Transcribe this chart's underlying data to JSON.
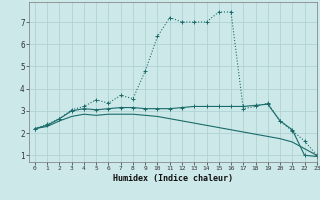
{
  "bg_color": "#cde8e8",
  "grid_color": "#aacfcf",
  "line_color": "#1a6b6b",
  "xlabel": "Humidex (Indice chaleur)",
  "xlim": [
    -0.5,
    23
  ],
  "ylim": [
    0.7,
    7.9
  ],
  "xticks": [
    0,
    1,
    2,
    3,
    4,
    5,
    6,
    7,
    8,
    9,
    10,
    11,
    12,
    13,
    14,
    15,
    16,
    17,
    18,
    19,
    20,
    21,
    22,
    23
  ],
  "yticks": [
    1,
    2,
    3,
    4,
    5,
    6,
    7
  ],
  "line1_x": [
    0,
    1,
    2,
    3,
    4,
    5,
    6,
    7,
    8,
    9,
    10,
    11,
    12,
    13,
    14,
    15,
    16,
    17,
    18,
    19,
    20,
    21,
    22,
    23
  ],
  "line1_y": [
    2.2,
    2.4,
    2.65,
    3.05,
    3.2,
    3.5,
    3.35,
    3.7,
    3.55,
    4.8,
    6.35,
    7.2,
    7.0,
    7.0,
    7.0,
    7.45,
    7.45,
    3.1,
    3.2,
    3.35,
    2.55,
    2.1,
    1.65,
    1.0
  ],
  "line2_x": [
    0,
    1,
    2,
    3,
    4,
    5,
    6,
    7,
    8,
    9,
    10,
    11,
    12,
    13,
    14,
    15,
    16,
    17,
    18,
    19,
    20,
    21,
    22,
    23
  ],
  "line2_y": [
    2.2,
    2.35,
    2.65,
    3.0,
    3.1,
    3.05,
    3.1,
    3.15,
    3.15,
    3.1,
    3.1,
    3.1,
    3.15,
    3.2,
    3.2,
    3.2,
    3.2,
    3.2,
    3.25,
    3.3,
    2.55,
    2.15,
    1.0,
    0.95
  ],
  "line3_x": [
    0,
    1,
    2,
    3,
    4,
    5,
    6,
    7,
    8,
    9,
    10,
    11,
    12,
    13,
    14,
    15,
    16,
    17,
    18,
    19,
    20,
    21,
    22,
    23
  ],
  "line3_y": [
    2.2,
    2.3,
    2.55,
    2.75,
    2.85,
    2.8,
    2.85,
    2.85,
    2.85,
    2.8,
    2.75,
    2.65,
    2.55,
    2.45,
    2.35,
    2.25,
    2.15,
    2.05,
    1.95,
    1.85,
    1.75,
    1.6,
    1.3,
    1.0
  ]
}
